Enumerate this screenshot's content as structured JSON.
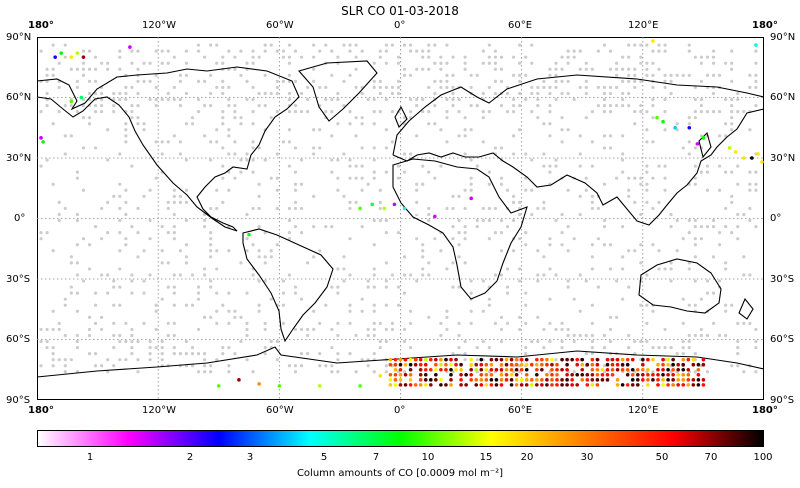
{
  "title": "SLR CO 01-03-2018",
  "map": {
    "lon_ticks": [
      "180°",
      "120°W",
      "60°W",
      "0°",
      "60°E",
      "120°E",
      "180°"
    ],
    "lat_ticks": [
      "90°N",
      "60°N",
      "30°N",
      "0°",
      "30°S",
      "60°S",
      "90°S"
    ],
    "grid": true,
    "sample_color": "#cccccc"
  },
  "colorbar": {
    "label": "Column amounts of CO [0.0009 mol m⁻²]",
    "ticks": [
      "1",
      "2",
      "3",
      "5",
      "7",
      "10",
      "15",
      "20",
      "30",
      "50",
      "70",
      "100"
    ],
    "colors": [
      "#ffffff",
      "#ff00ff",
      "#0000ff",
      "#00ffff",
      "#00ff00",
      "#ffff00",
      "#ff8000",
      "#ff0000",
      "#000000"
    ]
  },
  "chart_data": {
    "type": "scatter",
    "title": "SLR CO 01-03-2018",
    "xlabel": "",
    "ylabel": "",
    "xlim": [
      -180,
      180
    ],
    "ylim": [
      -90,
      90
    ],
    "grid": true,
    "series": [
      {
        "name": "",
        "points": [
          {
            "lon": -171,
            "lat": 80,
            "v": 3
          },
          {
            "lon": -168,
            "lat": 82,
            "v": 10
          },
          {
            "lon": -163,
            "lat": 80,
            "v": 20
          },
          {
            "lon": -160,
            "lat": 82,
            "v": 15
          },
          {
            "lon": -157,
            "lat": 80,
            "v": 70
          },
          {
            "lon": -134,
            "lat": 85,
            "v": 2
          },
          {
            "lon": -163,
            "lat": 58,
            "v": 12
          },
          {
            "lon": -158,
            "lat": 60,
            "v": 8
          },
          {
            "lon": -177,
            "lat": 38,
            "v": 10
          },
          {
            "lon": -178,
            "lat": 40,
            "v": 2
          },
          {
            "lon": -20,
            "lat": 5,
            "v": 12
          },
          {
            "lon": -14,
            "lat": 7,
            "v": 8
          },
          {
            "lon": -8,
            "lat": 5,
            "v": 15
          },
          {
            "lon": -3,
            "lat": 7,
            "v": 2
          },
          {
            "lon": 2,
            "lat": 5,
            "v": 6
          },
          {
            "lon": 8,
            "lat": 3,
            "v": 1
          },
          {
            "lon": 12,
            "lat": 5,
            "v": 1
          },
          {
            "lon": 17,
            "lat": 1,
            "v": 2
          },
          {
            "lon": 35,
            "lat": 10,
            "v": 2
          },
          {
            "lon": 40,
            "lat": 8,
            "v": 1
          },
          {
            "lon": -75,
            "lat": -8,
            "v": 9
          },
          {
            "lon": 127,
            "lat": 50,
            "v": 12
          },
          {
            "lon": 130,
            "lat": 48,
            "v": 10
          },
          {
            "lon": 136,
            "lat": 45,
            "v": 5
          },
          {
            "lon": 143,
            "lat": 45,
            "v": 3
          },
          {
            "lon": 150,
            "lat": 40,
            "v": 10
          },
          {
            "lon": 147,
            "lat": 37,
            "v": 2
          },
          {
            "lon": 163,
            "lat": 35,
            "v": 15
          },
          {
            "lon": 166,
            "lat": 33,
            "v": 20
          },
          {
            "lon": 170,
            "lat": 30,
            "v": 20
          },
          {
            "lon": 174,
            "lat": 30,
            "v": 100
          },
          {
            "lon": 177,
            "lat": 32,
            "v": 20
          },
          {
            "lon": 179,
            "lat": 28,
            "v": 20
          },
          {
            "lon": 176,
            "lat": 86,
            "v": 6
          },
          {
            "lon": 125,
            "lat": 88,
            "v": 20
          },
          {
            "lon": -90,
            "lat": -83,
            "v": 12
          },
          {
            "lon": -80,
            "lat": -80,
            "v": 70
          },
          {
            "lon": -70,
            "lat": -82,
            "v": 30
          },
          {
            "lon": -60,
            "lat": -83,
            "v": 12
          },
          {
            "lon": -40,
            "lat": -83,
            "v": 15
          },
          {
            "lon": -20,
            "lat": -83,
            "v": 12
          },
          {
            "lon": -10,
            "lat": -78,
            "v": 20
          }
        ]
      },
      {
        "name": "",
        "region": {
          "lon_min": -5,
          "lon_max": 150,
          "lat_min": -83,
          "lat_max": -70,
          "v_range": [
            15,
            100
          ]
        }
      }
    ]
  }
}
